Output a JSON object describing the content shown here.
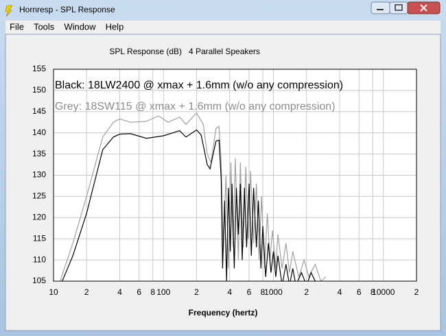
{
  "window": {
    "title": "Hornresp - SPL Response",
    "menu": [
      "File",
      "Tools",
      "Window",
      "Help"
    ]
  },
  "chart_data": {
    "type": "line",
    "title": "SPL Response (dB)",
    "subtitle": "4 Parallel Speakers",
    "x_label": "Frequency (hertz)",
    "annotations": [
      {
        "text": "Black: 18LW2400 @ xmax + 1.6mm (w/o any compression)",
        "color": "#000000"
      },
      {
        "text": "Grey: 18SW115 @ xmax + 1.6mm (w/o any compression)",
        "color": "#8c8c8c"
      }
    ],
    "x_scale": "log",
    "grid": true,
    "xlim": [
      10,
      20000
    ],
    "ylim": [
      105,
      155
    ],
    "xticks": [
      10,
      {
        "value": 20,
        "label": "2"
      },
      {
        "value": 40,
        "label": "4"
      },
      {
        "value": 60,
        "label": "6"
      },
      {
        "value": 80,
        "label": "8"
      },
      100,
      {
        "value": 200,
        "label": "2"
      },
      {
        "value": 400,
        "label": "4"
      },
      {
        "value": 600,
        "label": "6"
      },
      {
        "value": 800,
        "label": "8"
      },
      1000,
      {
        "value": 2000,
        "label": "2"
      },
      {
        "value": 4000,
        "label": "4"
      },
      {
        "value": 6000,
        "label": "6"
      },
      {
        "value": 8000,
        "label": "8"
      },
      10000,
      {
        "value": 20000,
        "label": "2"
      }
    ],
    "yticks": [
      105,
      110,
      115,
      120,
      125,
      130,
      135,
      140,
      145,
      150,
      155
    ],
    "series": [
      {
        "name": "Grey",
        "color": "#a0a0a0",
        "x": [
          11.5,
          15,
          20,
          28,
          35,
          40,
          50,
          70,
          90,
          110,
          140,
          160,
          200,
          230,
          250,
          270,
          300,
          320,
          335,
          350,
          370,
          390,
          410,
          430,
          450,
          480,
          500,
          530,
          560,
          590,
          620,
          660,
          700,
          740,
          780,
          830,
          880,
          930,
          980,
          1050,
          1100,
          1200,
          1300,
          1400,
          1500,
          1700,
          1900,
          2100,
          2400,
          2700,
          3000
        ],
        "values": [
          105,
          114,
          125,
          139,
          142.5,
          143.3,
          142.5,
          142.7,
          144,
          142.5,
          143.7,
          142,
          144.7,
          142,
          135,
          133,
          141,
          141.5,
          133,
          112,
          130,
          108,
          133,
          113,
          134,
          110,
          133,
          113,
          132,
          115,
          131,
          114,
          128,
          110,
          125,
          108,
          121,
          110,
          117,
          108,
          116,
          108,
          114,
          107,
          112,
          106,
          110,
          106,
          109,
          105,
          106
        ]
      },
      {
        "name": "Black",
        "color": "#000000",
        "x": [
          12,
          15,
          20,
          28,
          35,
          40,
          50,
          70,
          100,
          140,
          160,
          200,
          220,
          250,
          265,
          300,
          320,
          335,
          345,
          360,
          375,
          390,
          405,
          420,
          440,
          460,
          480,
          500,
          520,
          545,
          570,
          600,
          630,
          660,
          700,
          730,
          770,
          800,
          850,
          900,
          950,
          1000,
          1050,
          1100,
          1200,
          1300,
          1400,
          1500,
          1600,
          1800,
          2000,
          2200,
          2500
        ],
        "values": [
          105,
          111,
          121,
          136,
          139,
          139.7,
          139.8,
          138.7,
          139.3,
          140.5,
          139,
          140.7,
          139.5,
          132.5,
          131.5,
          138,
          138.3,
          129,
          108,
          124,
          105,
          127,
          112,
          128,
          108,
          127,
          116,
          128,
          110,
          127,
          113,
          128,
          111,
          127,
          113,
          124,
          108,
          118,
          106,
          114,
          107,
          112,
          106,
          111,
          104,
          109,
          104,
          108,
          104,
          107,
          104,
          107,
          104
        ]
      }
    ]
  }
}
